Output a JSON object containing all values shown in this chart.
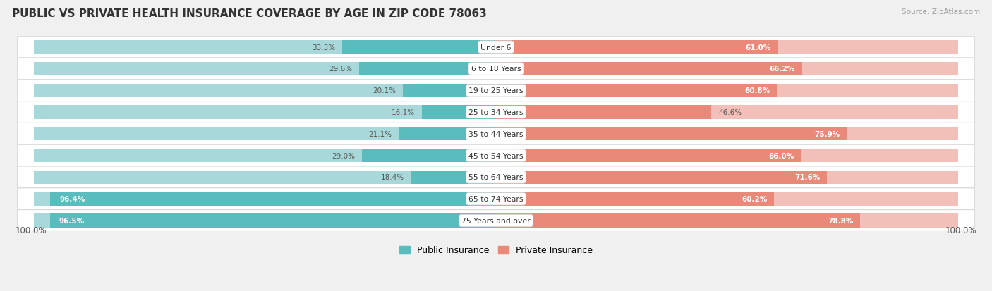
{
  "title": "PUBLIC VS PRIVATE HEALTH INSURANCE COVERAGE BY AGE IN ZIP CODE 78063",
  "source": "Source: ZipAtlas.com",
  "categories": [
    "Under 6",
    "6 to 18 Years",
    "19 to 25 Years",
    "25 to 34 Years",
    "35 to 44 Years",
    "45 to 54 Years",
    "55 to 64 Years",
    "65 to 74 Years",
    "75 Years and over"
  ],
  "public_values": [
    33.3,
    29.6,
    20.1,
    16.1,
    21.1,
    29.0,
    18.4,
    96.4,
    96.5
  ],
  "private_values": [
    61.0,
    66.2,
    60.8,
    46.6,
    75.9,
    66.0,
    71.6,
    60.2,
    78.8
  ],
  "public_color": "#5bbcbe",
  "private_color": "#e8897a",
  "public_color_light": "#a8d8d9",
  "private_color_light": "#f2c0b8",
  "bg_color": "#f0f0f0",
  "title_fontsize": 11,
  "label_fontsize": 7.5,
  "axis_label_left": "100.0%",
  "axis_label_right": "100.0%",
  "legend_public": "Public Insurance",
  "legend_private": "Private Insurance"
}
